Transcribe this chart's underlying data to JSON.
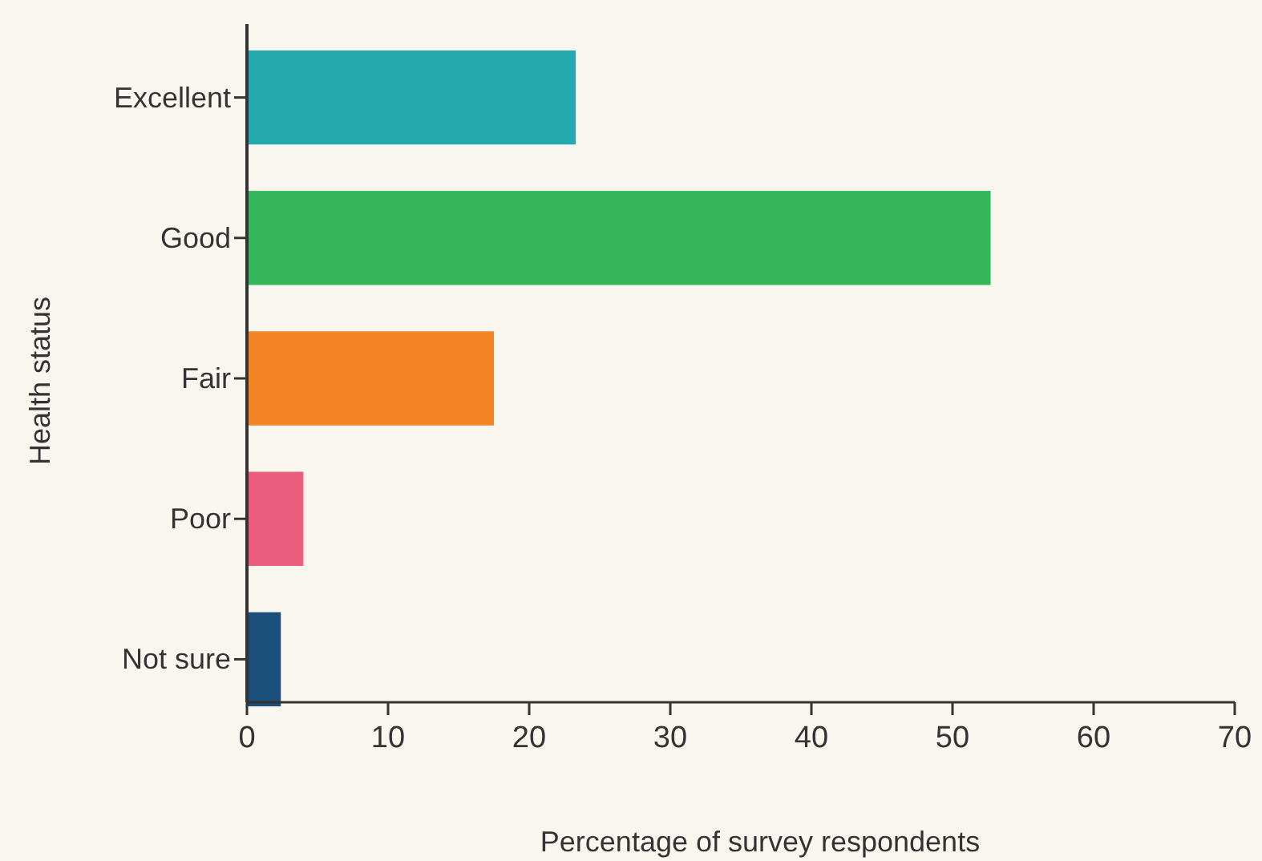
{
  "chart_data": {
    "type": "bar",
    "orientation": "horizontal",
    "xlabel": "Percentage of survey respondents",
    "ylabel": "Health status",
    "categories": [
      "Excellent",
      "Good",
      "Fair",
      "Poor",
      "Not sure"
    ],
    "values": [
      23.3,
      52.7,
      17.5,
      4.0,
      2.4
    ],
    "colors": [
      "#26a9ae",
      "#36b65a",
      "#f48425",
      "#e95c7b",
      "#1b4e78"
    ],
    "xlim": [
      0,
      70
    ],
    "xticks": [
      0,
      10,
      20,
      30,
      40,
      50,
      60,
      70
    ],
    "grid": false
  }
}
